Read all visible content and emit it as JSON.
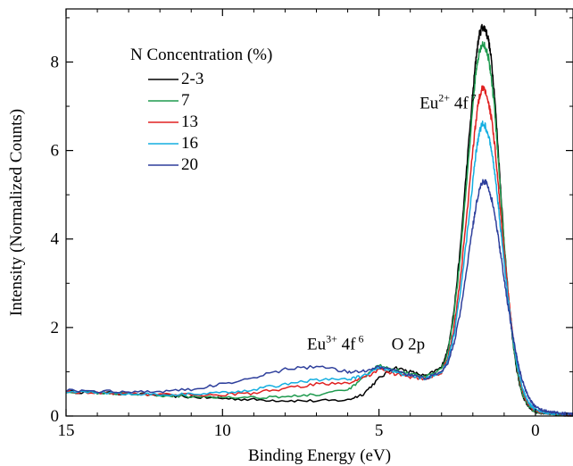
{
  "chart_data": {
    "type": "line",
    "title": "",
    "xlabel": "Binding Energy (eV)",
    "ylabel": "Intensity (Normalized Counts)",
    "xlim": [
      15,
      -1.2
    ],
    "ylim": [
      0,
      9.2
    ],
    "x_reversed": true,
    "x_ticks": [
      15,
      10,
      5,
      0
    ],
    "y_ticks": [
      0,
      2,
      4,
      6,
      8
    ],
    "grid": false,
    "legend": {
      "title": "N Concentration (%)",
      "placement": "top-left"
    },
    "series": [
      {
        "name": "2-3",
        "color": "#000000",
        "x": [
          15,
          14,
          13,
          12,
          11,
          10,
          9,
          8,
          7,
          6,
          5.5,
          5,
          4.5,
          4,
          3.5,
          3,
          2.8,
          2.6,
          2.4,
          2.2,
          2.0,
          1.9,
          1.8,
          1.7,
          1.6,
          1.5,
          1.4,
          1.3,
          1.2,
          1.1,
          1.0,
          0.9,
          0.8,
          0.7,
          0.6,
          0.5,
          0.4,
          0.3,
          0.2,
          0.1,
          0.0,
          -0.2,
          -0.4,
          -0.6,
          -0.8,
          -1.0,
          -1.2
        ],
        "y": [
          0.55,
          0.53,
          0.5,
          0.47,
          0.43,
          0.4,
          0.37,
          0.35,
          0.34,
          0.36,
          0.5,
          0.85,
          1.1,
          1.0,
          0.9,
          1.1,
          1.5,
          2.4,
          3.8,
          5.6,
          7.3,
          8.1,
          8.6,
          8.8,
          8.75,
          8.5,
          8.0,
          7.2,
          6.1,
          5.0,
          3.9,
          3.0,
          2.2,
          1.55,
          1.05,
          0.7,
          0.45,
          0.3,
          0.2,
          0.14,
          0.1,
          0.07,
          0.05,
          0.04,
          0.03,
          0.02,
          0.02
        ]
      },
      {
        "name": "7",
        "color": "#1e9a4e",
        "x": [
          15,
          14,
          13,
          12,
          11,
          10,
          9,
          8,
          7,
          6,
          5.5,
          5,
          4.5,
          4,
          3.5,
          3,
          2.8,
          2.6,
          2.4,
          2.2,
          2.0,
          1.9,
          1.8,
          1.7,
          1.6,
          1.5,
          1.4,
          1.3,
          1.2,
          1.1,
          1.0,
          0.9,
          0.8,
          0.7,
          0.6,
          0.5,
          0.4,
          0.3,
          0.2,
          0.1,
          0.0,
          -0.2,
          -0.4,
          -0.6,
          -0.8,
          -1.0,
          -1.2
        ],
        "y": [
          0.55,
          0.53,
          0.5,
          0.47,
          0.45,
          0.43,
          0.42,
          0.44,
          0.48,
          0.58,
          0.85,
          1.15,
          1.05,
          0.95,
          0.88,
          1.05,
          1.45,
          2.3,
          3.6,
          5.3,
          7.0,
          7.8,
          8.2,
          8.4,
          8.35,
          8.1,
          7.6,
          6.9,
          5.9,
          4.9,
          3.9,
          3.0,
          2.25,
          1.6,
          1.1,
          0.74,
          0.48,
          0.32,
          0.22,
          0.15,
          0.11,
          0.08,
          0.06,
          0.05,
          0.04,
          0.03,
          0.03
        ]
      },
      {
        "name": "13",
        "color": "#e02020",
        "x": [
          15,
          14,
          13,
          12,
          11,
          10,
          9,
          8,
          7,
          6,
          5.5,
          5,
          4.5,
          4,
          3.5,
          3,
          2.8,
          2.6,
          2.4,
          2.2,
          2.0,
          1.9,
          1.8,
          1.7,
          1.6,
          1.5,
          1.4,
          1.3,
          1.2,
          1.1,
          1.0,
          0.9,
          0.8,
          0.7,
          0.6,
          0.5,
          0.4,
          0.3,
          0.2,
          0.1,
          0.0,
          -0.2,
          -0.4,
          -0.6,
          -0.8,
          -1.0,
          -1.2
        ],
        "y": [
          0.55,
          0.53,
          0.51,
          0.49,
          0.48,
          0.48,
          0.52,
          0.62,
          0.72,
          0.75,
          0.85,
          1.05,
          0.95,
          0.88,
          0.83,
          0.98,
          1.3,
          2.0,
          3.1,
          4.5,
          6.0,
          6.7,
          7.2,
          7.4,
          7.35,
          7.1,
          6.7,
          6.1,
          5.3,
          4.5,
          3.7,
          2.95,
          2.3,
          1.7,
          1.2,
          0.82,
          0.55,
          0.37,
          0.25,
          0.17,
          0.12,
          0.09,
          0.07,
          0.05,
          0.04,
          0.03,
          0.03
        ]
      },
      {
        "name": "16",
        "color": "#13aee0",
        "x": [
          15,
          14,
          13,
          12,
          11,
          10,
          9,
          8,
          7,
          6,
          5.5,
          5,
          4.5,
          4,
          3.5,
          3,
          2.8,
          2.6,
          2.4,
          2.2,
          2.0,
          1.9,
          1.8,
          1.7,
          1.6,
          1.5,
          1.4,
          1.3,
          1.2,
          1.1,
          1.0,
          0.9,
          0.8,
          0.7,
          0.6,
          0.5,
          0.4,
          0.3,
          0.2,
          0.1,
          0.0,
          -0.2,
          -0.4,
          -0.6,
          -0.8,
          -1.0,
          -1.2
        ],
        "y": [
          0.55,
          0.53,
          0.51,
          0.49,
          0.49,
          0.52,
          0.6,
          0.72,
          0.82,
          0.83,
          0.9,
          1.1,
          0.98,
          0.9,
          0.85,
          0.98,
          1.25,
          1.85,
          2.8,
          4.0,
          5.3,
          5.95,
          6.4,
          6.6,
          6.55,
          6.35,
          6.0,
          5.5,
          4.85,
          4.15,
          3.45,
          2.8,
          2.2,
          1.68,
          1.22,
          0.86,
          0.6,
          0.42,
          0.29,
          0.2,
          0.14,
          0.1,
          0.07,
          0.06,
          0.05,
          0.04,
          0.04
        ]
      },
      {
        "name": "20",
        "color": "#2e3f9c",
        "x": [
          15,
          14,
          13,
          12,
          11,
          10,
          9,
          8,
          7,
          6,
          5.5,
          5,
          4.5,
          4,
          3.5,
          3,
          2.8,
          2.6,
          2.4,
          2.2,
          2.0,
          1.9,
          1.8,
          1.7,
          1.6,
          1.5,
          1.4,
          1.3,
          1.2,
          1.1,
          1.0,
          0.9,
          0.8,
          0.7,
          0.6,
          0.5,
          0.4,
          0.3,
          0.2,
          0.1,
          0.0,
          -0.2,
          -0.4,
          -0.6,
          -0.8,
          -1.0,
          -1.2
        ],
        "y": [
          0.58,
          0.56,
          0.55,
          0.56,
          0.6,
          0.72,
          0.88,
          1.05,
          1.12,
          1.0,
          1.02,
          1.12,
          1.02,
          0.92,
          0.86,
          0.98,
          1.2,
          1.65,
          2.35,
          3.3,
          4.3,
          4.75,
          5.1,
          5.3,
          5.3,
          5.15,
          4.9,
          4.55,
          4.1,
          3.6,
          3.1,
          2.6,
          2.15,
          1.72,
          1.35,
          1.02,
          0.76,
          0.56,
          0.4,
          0.29,
          0.21,
          0.14,
          0.1,
          0.08,
          0.06,
          0.05,
          0.05
        ]
      }
    ],
    "annotations": [
      {
        "id": "eu2",
        "base": "Eu",
        "sup1": "2+",
        "mid": " 4f",
        "sup2": "7",
        "x": 3.7,
        "y": 6.95
      },
      {
        "id": "eu3",
        "base": "Eu",
        "sup1": "3+",
        "mid": " 4f",
        "sup2": "6",
        "x": 7.3,
        "y": 1.5
      },
      {
        "id": "o2p",
        "text": "O 2p",
        "x": 4.6,
        "y": 1.5
      }
    ]
  }
}
